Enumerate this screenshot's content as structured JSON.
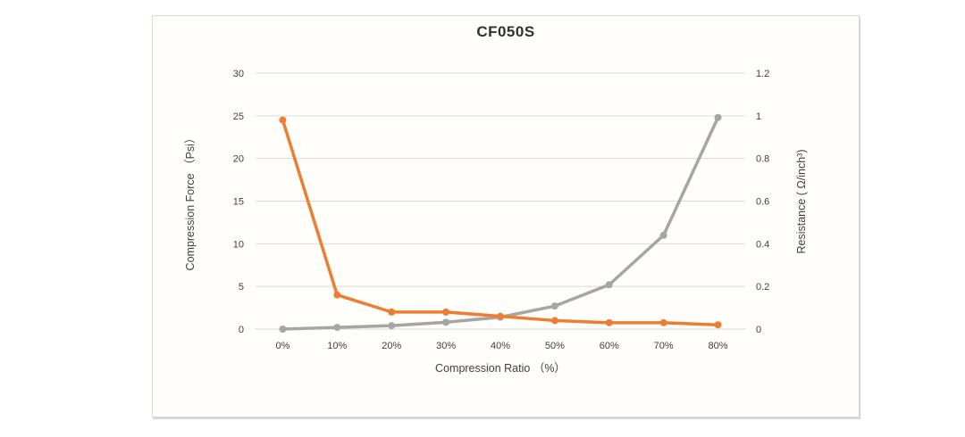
{
  "page": {
    "title": "CF050S"
  },
  "chart_data": {
    "type": "line",
    "title": "CF050S",
    "categories": [
      "0%",
      "10%",
      "20%",
      "30%",
      "40%",
      "50%",
      "60%",
      "70%",
      "80%"
    ],
    "x_axis": {
      "title": "Compression Ratio （%）"
    },
    "left_axis": {
      "title": "Compression Force （Psi）",
      "min": 0,
      "max": 30,
      "tick_labels": [
        "0",
        "5",
        "10",
        "15",
        "20",
        "25",
        "30"
      ]
    },
    "right_axis": {
      "title": "Resistance ( Ω/inch³)",
      "min": 0,
      "max": 1.2,
      "tick_labels": [
        "0",
        "0.2",
        "0.4",
        "0.6",
        "0.8",
        "1",
        "1.2"
      ]
    },
    "series": [
      {
        "name": "Compression Force",
        "axis": "left",
        "color": "#A5A5A5",
        "values": [
          0,
          0.2,
          0.4,
          0.8,
          1.4,
          2.7,
          5.2,
          11,
          24.8
        ]
      },
      {
        "name": "Resistance",
        "axis": "right",
        "color": "#ED7D31",
        "values": [
          0.98,
          0.16,
          0.08,
          0.08,
          0.06,
          0.04,
          0.03,
          0.03,
          0.02
        ]
      }
    ],
    "grid": true,
    "legend": "none",
    "colors": {
      "gridline": "#D9D9D9",
      "tick_text": "#404040",
      "title_text": "#303030",
      "card_border": "#D9D9D9"
    }
  }
}
